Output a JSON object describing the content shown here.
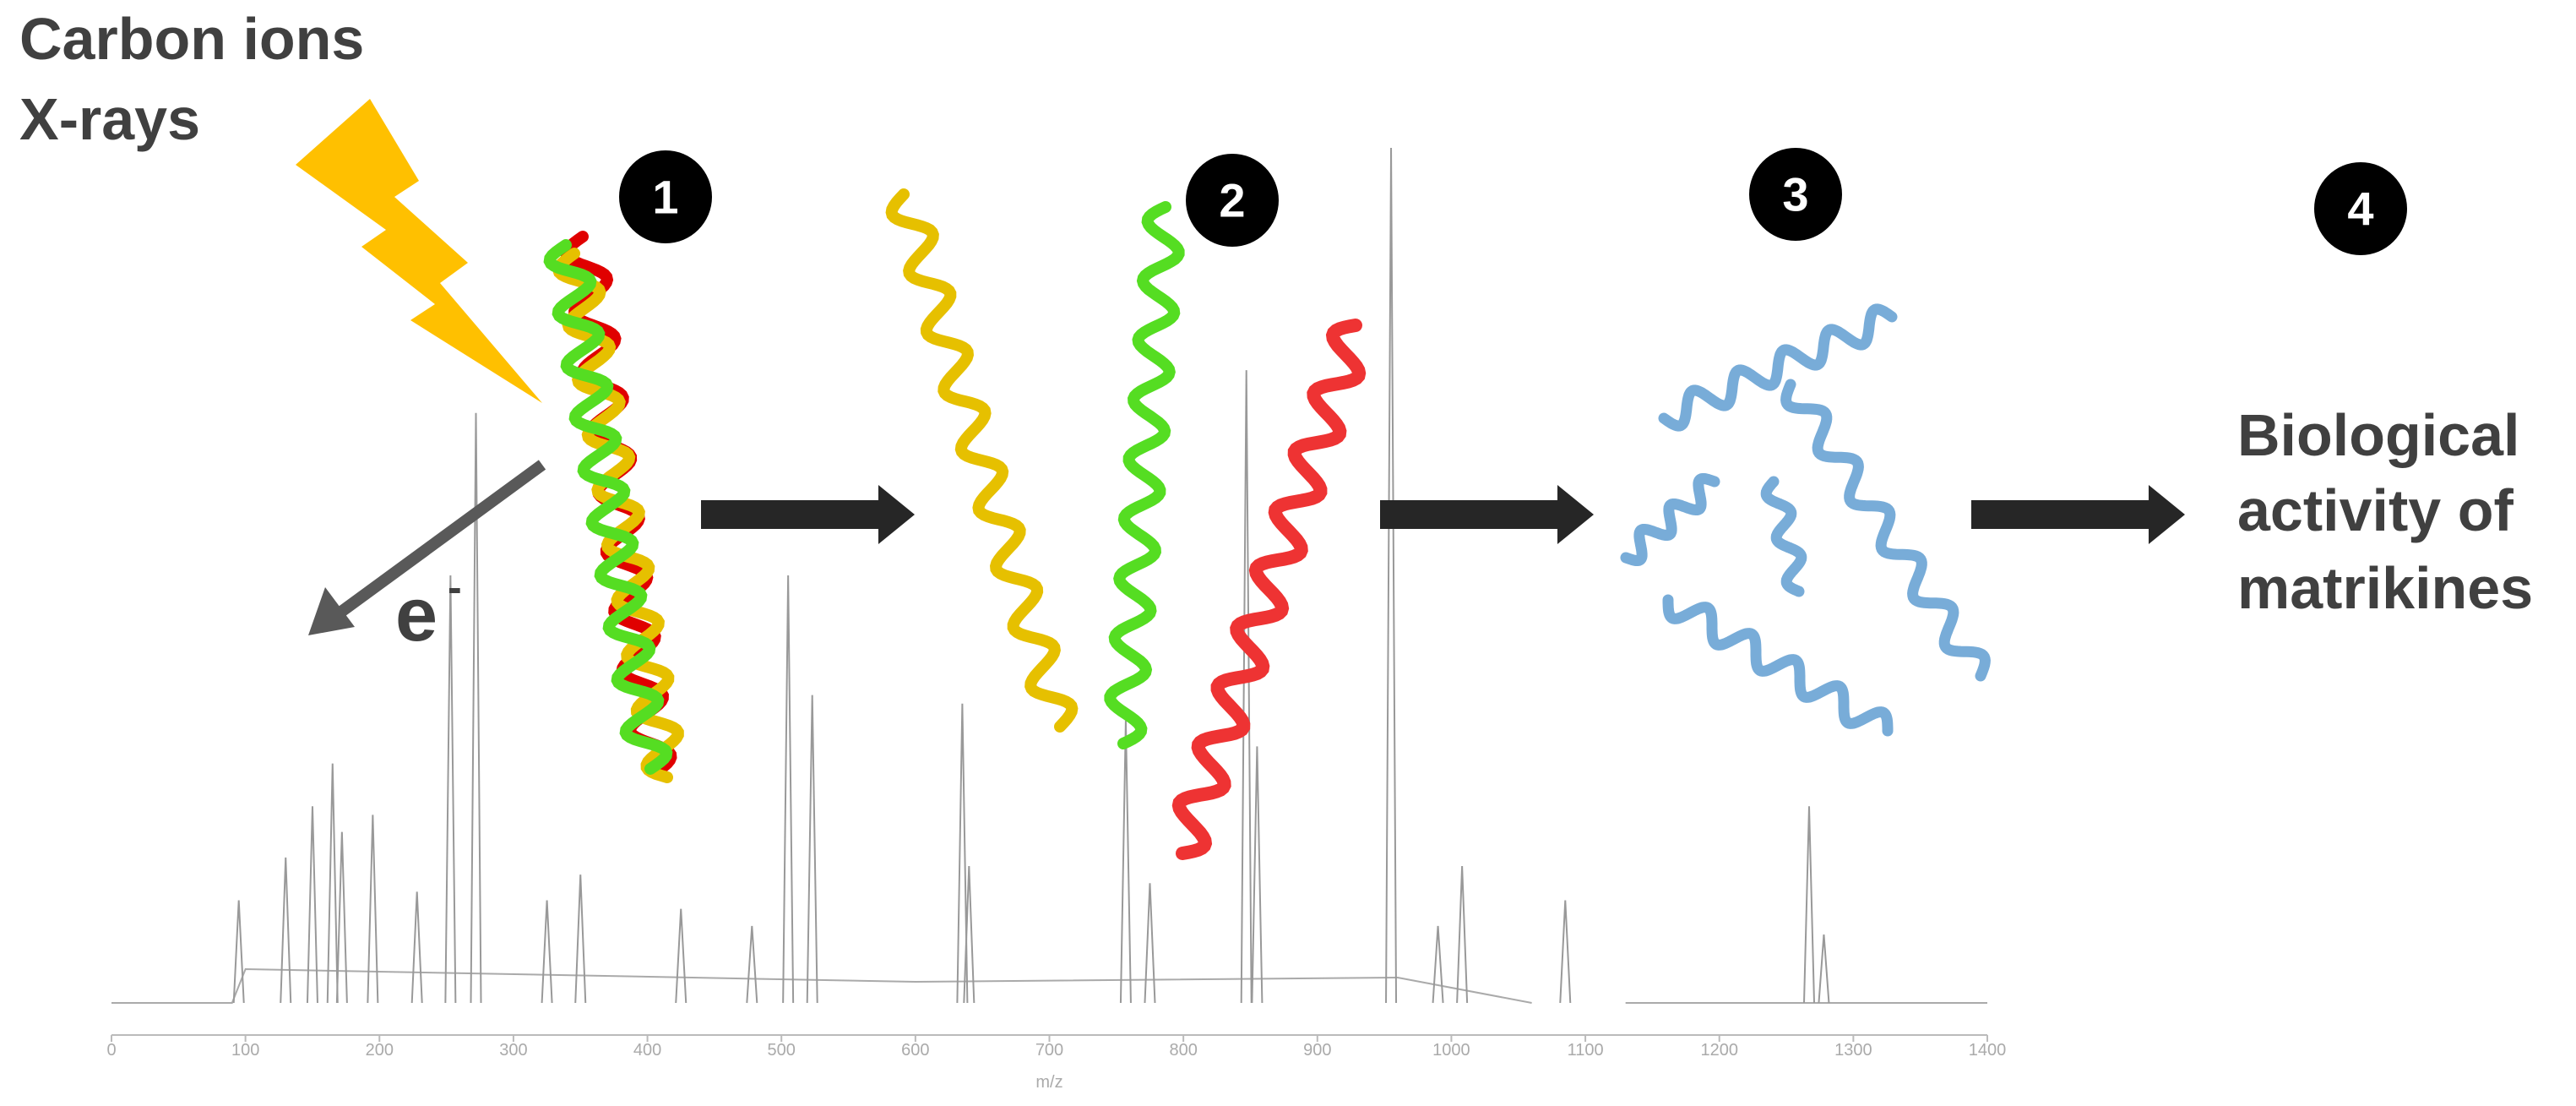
{
  "labels": {
    "source": [
      "Carbon ions",
      "X-rays"
    ],
    "electron": "e",
    "electron_charge": "-",
    "steps": [
      "1",
      "2",
      "3",
      "4"
    ],
    "outcome": [
      "Biological",
      "activity of",
      "matrikines"
    ]
  },
  "spectrum": {
    "xlabel": "m/z",
    "xlim": [
      0,
      1400
    ],
    "xticks": [
      0,
      100,
      200,
      300,
      400,
      500,
      600,
      700,
      800,
      900,
      1000,
      1100,
      1200,
      1300,
      1400
    ],
    "peaks": {
      "mz": [
        95,
        130,
        150,
        165,
        172,
        195,
        228,
        253,
        272,
        325,
        350,
        425,
        478,
        505,
        523,
        635,
        640,
        757,
        775,
        847,
        855,
        955,
        990,
        1008,
        1085,
        1267,
        1278
      ],
      "intensity": [
        12,
        17,
        23,
        28,
        20,
        22,
        13,
        50,
        69,
        12,
        15,
        11,
        9,
        50,
        36,
        35,
        16,
        33,
        14,
        74,
        30,
        100,
        9,
        16,
        12,
        23,
        8
      ]
    }
  }
}
